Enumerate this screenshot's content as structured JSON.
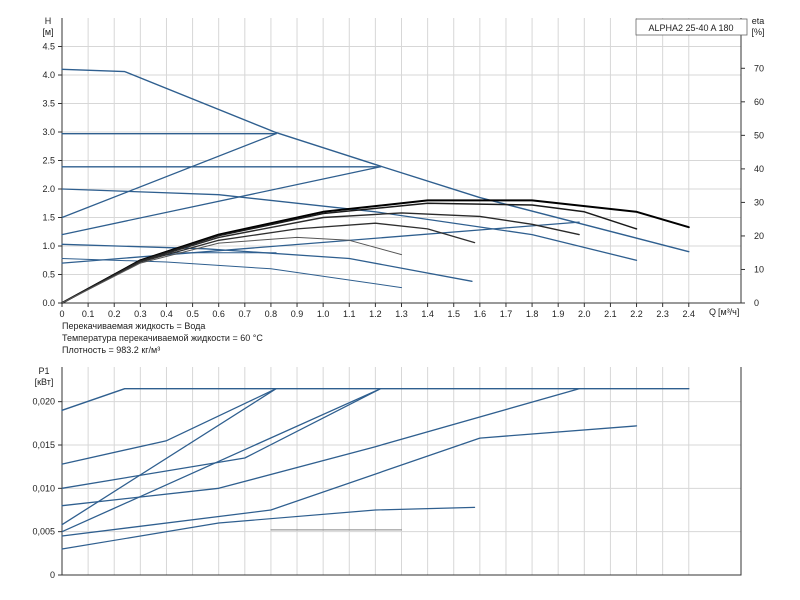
{
  "chart_data": [
    {
      "type": "line",
      "title": "ALPHA2 25-40 A 180",
      "ylabel": "H",
      "yunit": "[м]",
      "y2label": "eta",
      "y2unit": "[%]",
      "xlabel": "Q",
      "xunit": "[м³/ч]",
      "xlim": [
        0,
        2.6
      ],
      "ylim": [
        0,
        5.0
      ],
      "y2lim": [
        0,
        85
      ],
      "xticks": [
        "0",
        "0.1",
        "0.2",
        "0.3",
        "0.4",
        "0.5",
        "0.6",
        "0.7",
        "0.8",
        "0.9",
        "1.0",
        "1.1",
        "1.2",
        "1.3",
        "1.4",
        "1.5",
        "1.6",
        "1.7",
        "1.8",
        "1.9",
        "2.0",
        "2.1",
        "2.2",
        "2.3",
        "2.4"
      ],
      "yticks": [
        "0.0",
        "0.5",
        "1.0",
        "1.5",
        "2.0",
        "2.5",
        "3.0",
        "3.5",
        "4.0",
        "4.5"
      ],
      "y2ticks": [
        "0",
        "10",
        "20",
        "30",
        "40",
        "50",
        "60",
        "70"
      ],
      "grid": true,
      "series": [
        {
          "color": "#2f5f8f",
          "width": 1.4,
          "points": [
            [
              0,
              4.1
            ],
            [
              0.24,
              4.06
            ],
            [
              0.82,
              2.99
            ],
            [
              1.22,
              2.4
            ],
            [
              1.6,
              1.85
            ],
            [
              2.4,
              0.9
            ]
          ]
        },
        {
          "color": "#2f5f8f",
          "width": 1.3,
          "points": [
            [
              0,
              2.0
            ],
            [
              0.6,
              1.9
            ],
            [
              1.2,
              1.6
            ],
            [
              1.8,
              1.2
            ],
            [
              2.2,
              0.75
            ]
          ]
        },
        {
          "color": "#2f5f8f",
          "width": 1.3,
          "points": [
            [
              0,
              1.03
            ],
            [
              0.55,
              0.95
            ],
            [
              1.1,
              0.78
            ],
            [
              1.57,
              0.38
            ]
          ]
        },
        {
          "color": "#2f5f8f",
          "width": 1.0,
          "points": [
            [
              0,
              0.78
            ],
            [
              0.4,
              0.72
            ],
            [
              0.8,
              0.6
            ],
            [
              1.3,
              0.27
            ]
          ]
        },
        {
          "color": "#2f5f8f",
          "width": 1.3,
          "points": [
            [
              0,
              2.97
            ],
            [
              0.82,
              2.97
            ]
          ]
        },
        {
          "color": "#2f5f8f",
          "width": 1.3,
          "points": [
            [
              0,
              2.39
            ],
            [
              1.22,
              2.39
            ]
          ]
        },
        {
          "color": "#2f5f8f",
          "width": 1.3,
          "points": [
            [
              0,
              1.5
            ],
            [
              0.82,
              2.97
            ]
          ]
        },
        {
          "color": "#2f5f8f",
          "width": 1.3,
          "points": [
            [
              0,
              1.2
            ],
            [
              1.22,
              2.39
            ]
          ]
        },
        {
          "color": "#2f5f8f",
          "width": 1.3,
          "points": [
            [
              0,
              0.7
            ],
            [
              1.98,
              1.42
            ]
          ]
        },
        {
          "color": "#2f5f8f",
          "width": 1.0,
          "points": [
            [
              0.4,
              0.88
            ],
            [
              0.82,
              0.88
            ]
          ]
        },
        {
          "color": "#000000",
          "width": 2.0,
          "points": [
            [
              0,
              0
            ],
            [
              0.3,
              0.75
            ],
            [
              0.6,
              1.2
            ],
            [
              1.0,
              1.6
            ],
            [
              1.4,
              1.8
            ],
            [
              1.8,
              1.8
            ],
            [
              2.2,
              1.6
            ],
            [
              2.4,
              1.33
            ]
          ]
        },
        {
          "color": "#1a1a1a",
          "width": 1.5,
          "points": [
            [
              0,
              0
            ],
            [
              0.3,
              0.74
            ],
            [
              0.6,
              1.18
            ],
            [
              1.0,
              1.57
            ],
            [
              1.4,
              1.75
            ],
            [
              1.8,
              1.72
            ],
            [
              2.0,
              1.6
            ],
            [
              2.2,
              1.3
            ]
          ]
        },
        {
          "color": "#2a2a2a",
          "width": 1.4,
          "points": [
            [
              0,
              0
            ],
            [
              0.3,
              0.73
            ],
            [
              0.6,
              1.15
            ],
            [
              1.0,
              1.5
            ],
            [
              1.3,
              1.58
            ],
            [
              1.6,
              1.52
            ],
            [
              1.8,
              1.38
            ],
            [
              1.98,
              1.2
            ]
          ]
        },
        {
          "color": "#2f2f2f",
          "width": 1.3,
          "points": [
            [
              0,
              0
            ],
            [
              0.3,
              0.72
            ],
            [
              0.6,
              1.1
            ],
            [
              0.9,
              1.3
            ],
            [
              1.2,
              1.4
            ],
            [
              1.4,
              1.3
            ],
            [
              1.58,
              1.06
            ]
          ]
        },
        {
          "color": "#555555",
          "width": 1.0,
          "points": [
            [
              0,
              0
            ],
            [
              0.3,
              0.7
            ],
            [
              0.6,
              1.05
            ],
            [
              0.9,
              1.15
            ],
            [
              1.1,
              1.1
            ],
            [
              1.3,
              0.85
            ]
          ]
        }
      ],
      "notes": [
        "Перекачиваемая жидкость = Вода",
        "Температура перекачиваемой жидкости = 60 °C",
        "Плотность = 983.2 кг/м³"
      ]
    },
    {
      "type": "line",
      "ylabel": "P1",
      "yunit": "[кВт]",
      "xlim": [
        0,
        2.6
      ],
      "ylim": [
        0,
        0.024
      ],
      "yticks": [
        "0",
        "0,005",
        "0,010",
        "0,015",
        "0,020"
      ],
      "grid": true,
      "series": [
        {
          "color": "#2f5f8f",
          "width": 1.4,
          "points": [
            [
              0,
              0.019
            ],
            [
              0.24,
              0.0215
            ],
            [
              2.4,
              0.0215
            ]
          ]
        },
        {
          "color": "#2f5f8f",
          "width": 1.3,
          "points": [
            [
              0,
              0.0128
            ],
            [
              0.4,
              0.0155
            ],
            [
              0.82,
              0.0215
            ]
          ]
        },
        {
          "color": "#2f5f8f",
          "width": 1.3,
          "points": [
            [
              0,
              0.01
            ],
            [
              0.7,
              0.0135
            ],
            [
              1.22,
              0.0215
            ]
          ]
        },
        {
          "color": "#2f5f8f",
          "width": 1.3,
          "points": [
            [
              0,
              0.008
            ],
            [
              0.6,
              0.01
            ],
            [
              1.2,
              0.0148
            ],
            [
              1.98,
              0.0215
            ]
          ]
        },
        {
          "color": "#2f5f8f",
          "width": 1.3,
          "points": [
            [
              0,
              0.0058
            ],
            [
              0.82,
              0.0215
            ]
          ]
        },
        {
          "color": "#2f5f8f",
          "width": 1.3,
          "points": [
            [
              0,
              0.005
            ],
            [
              1.22,
              0.0215
            ]
          ]
        },
        {
          "color": "#2f5f8f",
          "width": 1.3,
          "points": [
            [
              0,
              0.0045
            ],
            [
              0.8,
              0.0075
            ],
            [
              1.6,
              0.0158
            ],
            [
              2.2,
              0.0172
            ]
          ]
        },
        {
          "color": "#2f5f8f",
          "width": 1.2,
          "points": [
            [
              0,
              0.003
            ],
            [
              0.6,
              0.006
            ],
            [
              1.2,
              0.0075
            ],
            [
              1.58,
              0.0078
            ]
          ]
        },
        {
          "color": "#888888",
          "width": 1.0,
          "points": [
            [
              0.8,
              0.0052
            ],
            [
              1.3,
              0.0052
            ]
          ]
        }
      ]
    }
  ]
}
